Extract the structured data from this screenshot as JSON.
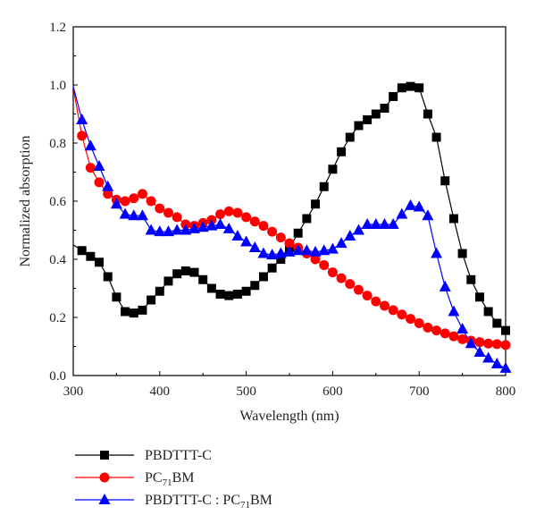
{
  "chart_data": {
    "type": "line",
    "xlabel": "Wavelength (nm)",
    "ylabel": "Normalized absorption",
    "xlim": [
      300,
      800
    ],
    "ylim": [
      0.0,
      1.2
    ],
    "xticks": [
      "300",
      "400",
      "500",
      "600",
      "700",
      "800"
    ],
    "yticks": [
      "0.0",
      "0.2",
      "0.4",
      "0.6",
      "0.8",
      "1.0",
      "1.2"
    ],
    "grid": false,
    "legend_position": "below-left",
    "series": [
      {
        "name": "PBDTTT-C",
        "legend_parts": [
          "PBDTTT-C"
        ],
        "color": "#000000",
        "marker": "square",
        "x": [
          300,
          310,
          320,
          330,
          340,
          350,
          360,
          370,
          380,
          390,
          400,
          410,
          420,
          430,
          440,
          450,
          460,
          470,
          480,
          490,
          500,
          510,
          520,
          530,
          540,
          550,
          560,
          570,
          580,
          590,
          600,
          610,
          620,
          630,
          640,
          650,
          660,
          670,
          680,
          690,
          700,
          710,
          720,
          730,
          740,
          750,
          760,
          770,
          780,
          790,
          800
        ],
        "y": [
          0.45,
          0.43,
          0.41,
          0.39,
          0.34,
          0.27,
          0.22,
          0.215,
          0.225,
          0.26,
          0.29,
          0.325,
          0.35,
          0.36,
          0.355,
          0.33,
          0.3,
          0.28,
          0.275,
          0.28,
          0.29,
          0.31,
          0.34,
          0.37,
          0.4,
          0.44,
          0.49,
          0.54,
          0.59,
          0.65,
          0.71,
          0.77,
          0.82,
          0.86,
          0.88,
          0.9,
          0.92,
          0.96,
          0.99,
          0.995,
          0.99,
          0.9,
          0.82,
          0.67,
          0.54,
          0.42,
          0.33,
          0.27,
          0.22,
          0.18,
          0.155
        ]
      },
      {
        "name": "PC71BM",
        "legend_parts": [
          "PC",
          "71",
          "BM"
        ],
        "color": "#ff0000",
        "marker": "circle",
        "x": [
          300,
          310,
          320,
          330,
          340,
          350,
          360,
          370,
          380,
          390,
          400,
          410,
          420,
          430,
          440,
          450,
          460,
          470,
          480,
          490,
          500,
          510,
          520,
          530,
          540,
          550,
          560,
          570,
          580,
          590,
          600,
          610,
          620,
          630,
          640,
          650,
          660,
          670,
          680,
          690,
          700,
          710,
          720,
          730,
          740,
          750,
          760,
          770,
          780,
          790,
          800
        ],
        "y": [
          0.99,
          0.825,
          0.715,
          0.665,
          0.625,
          0.605,
          0.6,
          0.61,
          0.625,
          0.6,
          0.575,
          0.56,
          0.545,
          0.52,
          0.515,
          0.525,
          0.535,
          0.555,
          0.565,
          0.56,
          0.545,
          0.53,
          0.515,
          0.495,
          0.475,
          0.455,
          0.44,
          0.42,
          0.4,
          0.38,
          0.355,
          0.335,
          0.315,
          0.295,
          0.275,
          0.255,
          0.24,
          0.225,
          0.21,
          0.195,
          0.18,
          0.165,
          0.155,
          0.145,
          0.135,
          0.125,
          0.12,
          0.115,
          0.11,
          0.108,
          0.105
        ]
      },
      {
        "name": "PBDTTT-C:PC71BM",
        "legend_parts": [
          "PBDTTT-C : PC",
          "71",
          "BM"
        ],
        "color": "#0000ff",
        "marker": "triangle",
        "x": [
          300,
          310,
          320,
          330,
          340,
          350,
          360,
          370,
          380,
          390,
          400,
          410,
          420,
          430,
          440,
          450,
          460,
          470,
          480,
          490,
          500,
          510,
          520,
          530,
          540,
          550,
          560,
          570,
          580,
          590,
          600,
          610,
          620,
          630,
          640,
          650,
          660,
          670,
          680,
          690,
          700,
          710,
          720,
          730,
          740,
          750,
          760,
          770,
          780,
          790,
          800
        ],
        "y": [
          0.995,
          0.88,
          0.79,
          0.72,
          0.65,
          0.59,
          0.555,
          0.55,
          0.55,
          0.5,
          0.495,
          0.495,
          0.5,
          0.5,
          0.505,
          0.51,
          0.515,
          0.52,
          0.505,
          0.48,
          0.46,
          0.44,
          0.42,
          0.415,
          0.42,
          0.425,
          0.43,
          0.43,
          0.425,
          0.43,
          0.435,
          0.455,
          0.48,
          0.5,
          0.52,
          0.52,
          0.52,
          0.52,
          0.555,
          0.585,
          0.58,
          0.55,
          0.42,
          0.305,
          0.22,
          0.16,
          0.11,
          0.08,
          0.06,
          0.04,
          0.025
        ]
      }
    ]
  }
}
